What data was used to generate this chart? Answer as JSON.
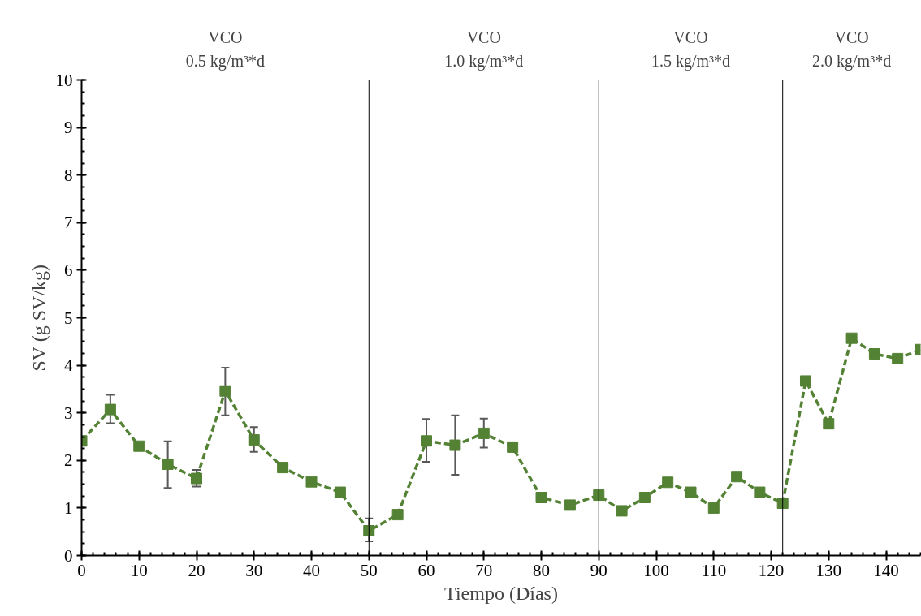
{
  "chart_data": {
    "type": "line",
    "xlabel": "Tiempo (Días)",
    "ylabel": "SV (g SV/kg)",
    "x": [
      0,
      5,
      10,
      15,
      20,
      25,
      30,
      35,
      40,
      45,
      50,
      55,
      60,
      65,
      70,
      75,
      80,
      85,
      90,
      94,
      98,
      102,
      106,
      110,
      114,
      118,
      122,
      126,
      130,
      134,
      138,
      142,
      146
    ],
    "series": [
      {
        "color": "#548235",
        "values": [
          2.41,
          3.07,
          2.3,
          1.92,
          1.62,
          3.46,
          2.43,
          1.85,
          1.55,
          1.33,
          0.52,
          0.86,
          2.41,
          2.32,
          2.57,
          2.28,
          1.22,
          1.06,
          1.27,
          0.94,
          1.22,
          1.54,
          1.33,
          1.0,
          1.66,
          1.33,
          1.1,
          3.67,
          2.77,
          4.57,
          4.24,
          4.14,
          4.33
        ],
        "errors": [
          null,
          [
            2.78,
            3.38
          ],
          null,
          [
            1.42,
            2.4
          ],
          [
            1.45,
            1.8
          ],
          [
            2.95,
            3.95
          ],
          [
            2.18,
            2.7
          ],
          null,
          null,
          null,
          [
            0.3,
            0.78
          ],
          null,
          [
            1.97,
            2.87
          ],
          [
            1.7,
            2.95
          ],
          [
            2.27,
            2.88
          ],
          null,
          null,
          null,
          null,
          null,
          null,
          null,
          null,
          null,
          null,
          null,
          null,
          null,
          null,
          null,
          null,
          null,
          null
        ]
      }
    ],
    "xlim": [
      0,
      146
    ],
    "ylim": [
      0,
      10
    ],
    "xticks": [
      0,
      10,
      20,
      30,
      40,
      50,
      60,
      70,
      80,
      90,
      100,
      110,
      120,
      130,
      140
    ],
    "yticks": [
      0,
      1,
      2,
      3,
      4,
      5,
      6,
      7,
      8,
      9,
      10
    ],
    "ref_lines": [
      {
        "axis": "x",
        "value": 50,
        "color": "#000000"
      },
      {
        "axis": "x",
        "value": 90,
        "color": "#000000"
      },
      {
        "axis": "x",
        "value": 122,
        "color": "#000000"
      }
    ],
    "annotations": [
      "VCO\n0.5 kg/m³*d",
      "VCO\n1.0 kg/m³*d",
      "VCO\n1.5 kg/m³*d",
      "VCO\n2.0 kg/m³*d"
    ],
    "grid": false,
    "marker": "square",
    "line_style": "dashed"
  }
}
